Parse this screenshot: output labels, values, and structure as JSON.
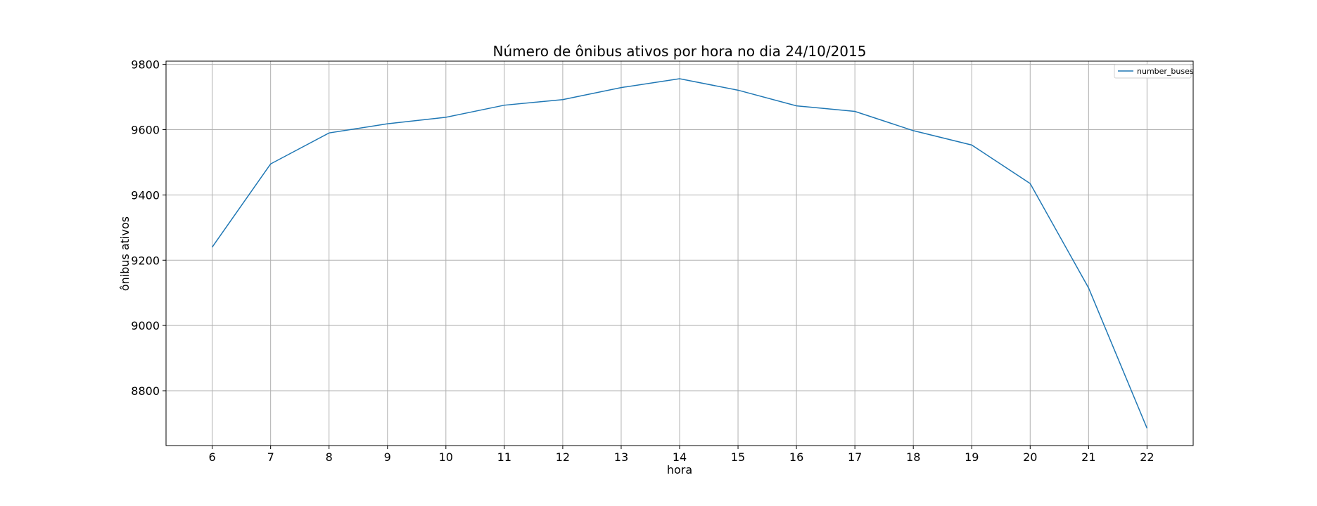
{
  "chart_data": {
    "type": "line",
    "title": "Número de ônibus ativos por hora no dia 24/10/2015",
    "xlabel": "hora",
    "ylabel": "ônibus ativos",
    "x": [
      6,
      7,
      8,
      9,
      10,
      11,
      12,
      13,
      14,
      15,
      16,
      17,
      18,
      19,
      20,
      21,
      22
    ],
    "series": [
      {
        "name": "number_buses",
        "color": "#1f77b4",
        "values": [
          9240,
          9495,
          9590,
          9618,
          9638,
          9675,
          9692,
          9729,
          9756,
          9721,
          9673,
          9656,
          9597,
          9553,
          9435,
          9115,
          8685
        ]
      }
    ],
    "xlim": [
      5.21,
      22.79
    ],
    "ylim": [
      8632,
      9810
    ],
    "yticks": [
      8800,
      9000,
      9200,
      9400,
      9600,
      9800
    ],
    "xticks": [
      6,
      7,
      8,
      9,
      10,
      11,
      12,
      13,
      14,
      15,
      16,
      17,
      18,
      19,
      20,
      21,
      22
    ],
    "grid": true,
    "legend_position": "top-right"
  }
}
